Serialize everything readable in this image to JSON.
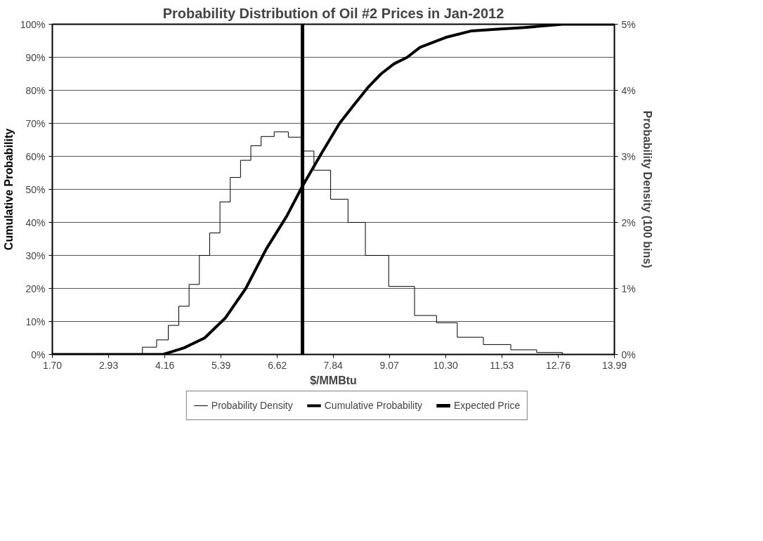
{
  "chart_data": {
    "type": "line",
    "title": "Probability Distribution of Oil #2 Prices in Jan-2012",
    "xlabel": "$/MMBtu",
    "ylabel": "Cumulative Probability",
    "y2label": "Probability Density (100 bins)",
    "series": [
      {
        "name": "Probability Density",
        "type": "step",
        "axis": "y2",
        "color": "#000000",
        "x": [
          1.7,
          3.5,
          3.84,
          4.12,
          4.35,
          4.58,
          4.8,
          5.03,
          5.25,
          5.48,
          5.7,
          5.93,
          6.15,
          6.38,
          6.72,
          7.0,
          7.28,
          7.56,
          8.01,
          8.32,
          8.77,
          9.34,
          9.9,
          10.3,
          10.81,
          11.44,
          12.01,
          12.57,
          13.13,
          13.99
        ],
        "values": [
          0,
          0,
          0.11,
          0.22,
          0.44,
          0.73,
          1.06,
          1.5,
          1.84,
          2.31,
          2.68,
          2.94,
          3.16,
          3.3,
          3.37,
          3.29,
          3.08,
          2.79,
          2.35,
          2.0,
          1.5,
          1.03,
          0.59,
          0.48,
          0.26,
          0.15,
          0.07,
          0.03,
          0,
          0
        ]
      },
      {
        "name": "Cumulative Probability",
        "type": "line",
        "color": "#000000",
        "x": [
          1.7,
          3.5,
          4.12,
          4.58,
          5.03,
          5.48,
          5.93,
          6.38,
          6.83,
          7.17,
          7.59,
          7.98,
          8.32,
          8.61,
          8.89,
          9.17,
          9.46,
          9.74,
          10.3,
          10.87,
          11.44,
          12.01,
          12.86,
          13.99
        ],
        "values": [
          0,
          0,
          0,
          2,
          5,
          11,
          20,
          32,
          42,
          51,
          61,
          70,
          76,
          81,
          85,
          88,
          90,
          93,
          96,
          98,
          98.5,
          99,
          100,
          100
        ]
      }
    ],
    "ref_lines": [
      {
        "axis": "x",
        "value": 7.17,
        "label": "Expected Price",
        "color": "#000000"
      }
    ],
    "xlim": [
      1.7,
      13.99
    ],
    "xticks": [
      {
        "value": 1.7,
        "label": "1.70"
      },
      2.93,
      4.16,
      5.39,
      6.62,
      7.84,
      9.07,
      {
        "value": 10.3,
        "label": "10.30"
      },
      11.53,
      12.76,
      13.99
    ],
    "ylim": [
      0,
      100
    ],
    "yticks": [
      {
        "value": 0,
        "label": "0%"
      },
      {
        "value": 10,
        "label": "10%"
      },
      {
        "value": 20,
        "label": "20%"
      },
      {
        "value": 30,
        "label": "30%"
      },
      {
        "value": 40,
        "label": "40%"
      },
      {
        "value": 50,
        "label": "50%"
      },
      {
        "value": 60,
        "label": "60%"
      },
      {
        "value": 70,
        "label": "70%"
      },
      {
        "value": 80,
        "label": "80%"
      },
      {
        "value": 90,
        "label": "90%"
      },
      {
        "value": 100,
        "label": "100%"
      }
    ],
    "y2lim": [
      0,
      5
    ],
    "y2ticks": [
      {
        "value": 0,
        "label": "0%"
      },
      {
        "value": 1,
        "label": "1%"
      },
      {
        "value": 2,
        "label": "2%"
      },
      {
        "value": 3,
        "label": "3%"
      },
      {
        "value": 4,
        "label": "4%"
      },
      {
        "value": 5,
        "label": "5%"
      }
    ],
    "grid": "y",
    "legend": "bottom",
    "marker": "none"
  }
}
